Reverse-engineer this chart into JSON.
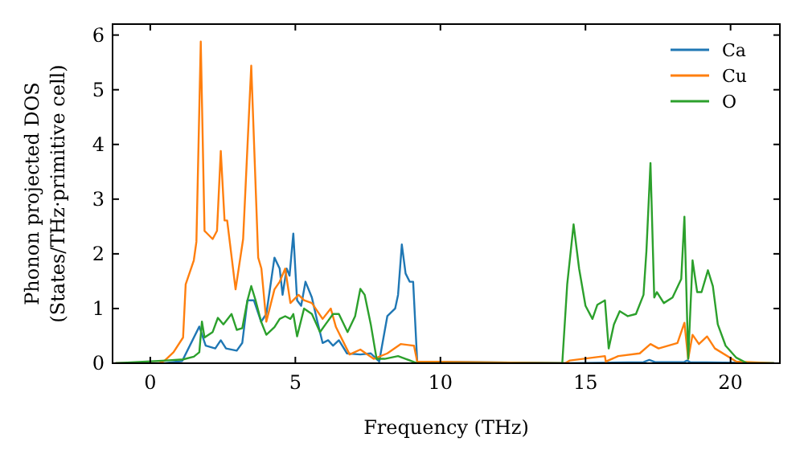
{
  "chart_data": {
    "type": "line",
    "xlabel": "Frequency (THz)",
    "ylabel": "Phonon projected DOS\n(States/THz·primitive cell)",
    "xlim": [
      -1.3,
      21.7
    ],
    "ylim": [
      0,
      6.2
    ],
    "xticks": [
      0,
      5,
      10,
      15,
      20
    ],
    "yticks": [
      0,
      1,
      2,
      3,
      4,
      5,
      6
    ],
    "grid": false,
    "legend": "top right",
    "marker": "none",
    "line_style": "solid",
    "series": [
      {
        "name": "Ca",
        "color": "#1f77b4",
        "x": [
          -1.2,
          0.5,
          1.1,
          1.69,
          1.91,
          2.24,
          2.43,
          2.61,
          2.98,
          3.17,
          3.35,
          3.57,
          3.82,
          4.0,
          4.28,
          4.46,
          4.56,
          4.7,
          4.8,
          4.93,
          5.06,
          5.2,
          5.35,
          5.57,
          5.76,
          5.94,
          6.13,
          6.3,
          6.5,
          6.78,
          7.24,
          7.6,
          7.89,
          8.17,
          8.44,
          8.54,
          8.67,
          8.8,
          8.94,
          9.06,
          9.2,
          14.4,
          17.0,
          17.2,
          17.4,
          18.4,
          18.5,
          18.6,
          21.5
        ],
        "values": [
          0,
          0,
          0.04,
          0.67,
          0.32,
          0.27,
          0.42,
          0.27,
          0.23,
          0.37,
          1.15,
          1.15,
          0.76,
          0.9,
          1.93,
          1.73,
          1.25,
          1.73,
          1.6,
          2.37,
          1.15,
          1.05,
          1.49,
          1.2,
          0.76,
          0.37,
          0.42,
          0.32,
          0.42,
          0.18,
          0.16,
          0.18,
          0.03,
          0.86,
          1.0,
          1.25,
          2.17,
          1.64,
          1.49,
          1.49,
          0.03,
          0,
          0.02,
          0.06,
          0.02,
          0.02,
          0.05,
          0.02,
          0
        ]
      },
      {
        "name": "Cu",
        "color": "#ff7f0e",
        "x": [
          -1.2,
          0.3,
          0.5,
          0.8,
          1.13,
          1.22,
          1.5,
          1.59,
          1.74,
          1.87,
          2.15,
          2.3,
          2.43,
          2.56,
          2.65,
          2.94,
          3.2,
          3.48,
          3.72,
          3.83,
          4.0,
          4.28,
          4.46,
          4.65,
          4.83,
          5.11,
          5.3,
          5.57,
          5.94,
          6.22,
          6.4,
          6.87,
          7.24,
          7.7,
          8.17,
          8.63,
          9.09,
          9.2,
          14.3,
          14.46,
          15.67,
          15.7,
          16.13,
          16.87,
          17.24,
          17.52,
          18.17,
          18.41,
          18.54,
          18.69,
          18.91,
          19.19,
          19.46,
          20.2,
          21.5
        ],
        "values": [
          0,
          0,
          0.05,
          0.2,
          0.47,
          1.44,
          1.88,
          2.22,
          5.88,
          2.42,
          2.27,
          2.42,
          3.88,
          2.61,
          2.61,
          1.35,
          2.27,
          5.44,
          1.93,
          1.73,
          0.76,
          1.35,
          1.49,
          1.73,
          1.1,
          1.25,
          1.15,
          1.1,
          0.81,
          1.0,
          0.66,
          0.16,
          0.25,
          0.08,
          0.18,
          0.35,
          0.32,
          0.03,
          0,
          0.05,
          0.13,
          0.03,
          0.13,
          0.18,
          0.35,
          0.27,
          0.37,
          0.74,
          0.08,
          0.52,
          0.35,
          0.49,
          0.27,
          0.03,
          0
        ]
      },
      {
        "name": "O",
        "color": "#2ca02c",
        "x": [
          -1.2,
          0.54,
          1.13,
          1.5,
          1.69,
          1.78,
          1.87,
          2.15,
          2.33,
          2.52,
          2.8,
          2.98,
          3.17,
          3.35,
          3.48,
          3.63,
          3.82,
          4.0,
          4.28,
          4.46,
          4.65,
          4.83,
          4.93,
          5.06,
          5.3,
          5.57,
          5.85,
          6.04,
          6.3,
          6.5,
          6.8,
          7.06,
          7.24,
          7.39,
          7.6,
          7.8,
          8.08,
          8.54,
          8.8,
          9.2,
          14.2,
          14.37,
          14.59,
          14.78,
          15.0,
          15.24,
          15.41,
          15.67,
          15.8,
          15.98,
          16.18,
          16.46,
          16.74,
          17.0,
          17.1,
          17.24,
          17.37,
          17.46,
          17.7,
          18.0,
          18.3,
          18.41,
          18.54,
          18.69,
          18.85,
          19.0,
          19.22,
          19.39,
          19.56,
          19.83,
          20.2,
          20.57,
          21.5
        ],
        "values": [
          0,
          0.05,
          0.07,
          0.12,
          0.2,
          0.76,
          0.47,
          0.57,
          0.83,
          0.71,
          0.9,
          0.61,
          0.64,
          1.15,
          1.41,
          1.15,
          0.76,
          0.52,
          0.66,
          0.81,
          0.86,
          0.81,
          0.9,
          0.49,
          1.0,
          0.9,
          0.57,
          0.71,
          0.9,
          0.9,
          0.57,
          0.86,
          1.36,
          1.25,
          0.71,
          0.08,
          0.08,
          0.13,
          0.08,
          0,
          0,
          1.44,
          2.54,
          1.73,
          1.05,
          0.81,
          1.07,
          1.15,
          0.27,
          0.71,
          0.95,
          0.86,
          0.9,
          1.25,
          2.05,
          3.66,
          1.2,
          1.3,
          1.1,
          1.2,
          1.54,
          2.68,
          0.08,
          1.88,
          1.3,
          1.3,
          1.7,
          1.41,
          0.71,
          0.32,
          0.1,
          0,
          0
        ]
      }
    ]
  }
}
